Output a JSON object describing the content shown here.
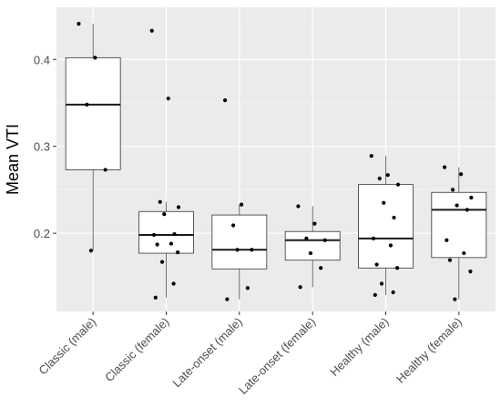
{
  "chart_data": {
    "type": "boxplot",
    "title": "",
    "xlabel": "",
    "ylabel": "Mean VTI",
    "ylim": [
      0.11,
      0.46
    ],
    "yticks": [
      0.2,
      0.3,
      0.4
    ],
    "ytick_labels": [
      "0.2",
      "0.3",
      "0.4"
    ],
    "grid": true,
    "categories": [
      "Classic (male)",
      "Classic (female)",
      "Late-onset (male)",
      "Late-onset (female)",
      "Healthy (male)",
      "Healthy (female)"
    ],
    "boxes": [
      {
        "q1": 0.273,
        "median": 0.348,
        "q3": 0.402,
        "whisker_low": 0.18,
        "whisker_high": 0.441
      },
      {
        "q1": 0.177,
        "median": 0.198,
        "q3": 0.225,
        "whisker_low": 0.126,
        "whisker_high": 0.236
      },
      {
        "q1": 0.159,
        "median": 0.181,
        "q3": 0.221,
        "whisker_low": 0.124,
        "whisker_high": 0.233
      },
      {
        "q1": 0.169,
        "median": 0.192,
        "q3": 0.202,
        "whisker_low": 0.138,
        "whisker_high": 0.231
      },
      {
        "q1": 0.16,
        "median": 0.194,
        "q3": 0.256,
        "whisker_low": 0.129,
        "whisker_high": 0.289
      },
      {
        "q1": 0.172,
        "median": 0.227,
        "q3": 0.247,
        "whisker_low": 0.124,
        "whisker_high": 0.276
      }
    ],
    "points": [
      [
        0.441,
        0.402,
        0.348,
        0.273,
        0.18
      ],
      [
        0.433,
        0.355,
        0.236,
        0.23,
        0.222,
        0.199,
        0.198,
        0.188,
        0.187,
        0.178,
        0.167,
        0.142,
        0.126
      ],
      [
        0.353,
        0.233,
        0.209,
        0.181,
        0.181,
        0.137,
        0.124
      ],
      [
        0.231,
        0.211,
        0.194,
        0.192,
        0.177,
        0.16,
        0.138
      ],
      [
        0.289,
        0.267,
        0.263,
        0.256,
        0.235,
        0.218,
        0.194,
        0.186,
        0.164,
        0.16,
        0.142,
        0.132,
        0.129
      ],
      [
        0.276,
        0.268,
        0.25,
        0.241,
        0.232,
        0.227,
        0.192,
        0.177,
        0.169,
        0.156,
        0.124
      ]
    ]
  }
}
